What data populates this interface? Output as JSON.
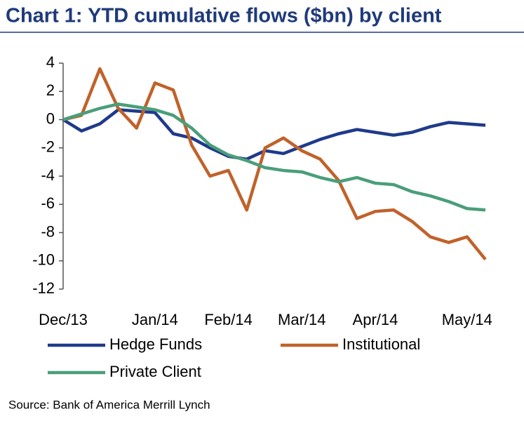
{
  "chart_data": {
    "type": "line",
    "title": "Chart 1: YTD cumulative flows ($bn) by client",
    "source": "Source: Bank of America Merrill Lynch",
    "categories": [
      "Dec/13",
      null,
      null,
      null,
      null,
      "Jan/14",
      null,
      null,
      null,
      "Feb/14",
      null,
      null,
      null,
      "Mar/14",
      null,
      null,
      null,
      "Apr/14",
      null,
      null,
      null,
      null,
      "May/14",
      null
    ],
    "series": [
      {
        "name": "Hedge Funds",
        "color": "#1f3a8a",
        "values": [
          0,
          -0.8,
          -0.3,
          0.7,
          0.6,
          0.5,
          -1.0,
          -1.3,
          -2.0,
          -2.6,
          -2.8,
          -2.2,
          -2.4,
          -1.9,
          -1.4,
          -1.0,
          -0.7,
          -0.9,
          -1.1,
          -0.9,
          -0.5,
          -0.2,
          -0.3,
          -0.4
        ]
      },
      {
        "name": "Institutional",
        "color": "#c0622a",
        "values": [
          0,
          0.3,
          3.6,
          0.8,
          -0.6,
          2.6,
          2.1,
          -1.8,
          -4.0,
          -3.6,
          -6.4,
          -2.0,
          -1.3,
          -2.2,
          -2.8,
          -4.3,
          -7.0,
          -6.5,
          -6.4,
          -7.2,
          -8.3,
          -8.7,
          -8.3,
          -9.9
        ]
      },
      {
        "name": "Private Client",
        "color": "#4a9e7a",
        "values": [
          0,
          0.4,
          0.8,
          1.1,
          0.9,
          0.7,
          0.3,
          -0.6,
          -1.8,
          -2.5,
          -2.9,
          -3.4,
          -3.6,
          -3.7,
          -4.1,
          -4.4,
          -4.1,
          -4.5,
          -4.6,
          -5.1,
          -5.4,
          -5.8,
          -6.3,
          -6.4
        ]
      }
    ],
    "ylim": [
      -12,
      4
    ],
    "yticks": [
      4,
      2,
      0,
      -2,
      -4,
      -6,
      -8,
      -10,
      -12
    ],
    "grid": false
  }
}
